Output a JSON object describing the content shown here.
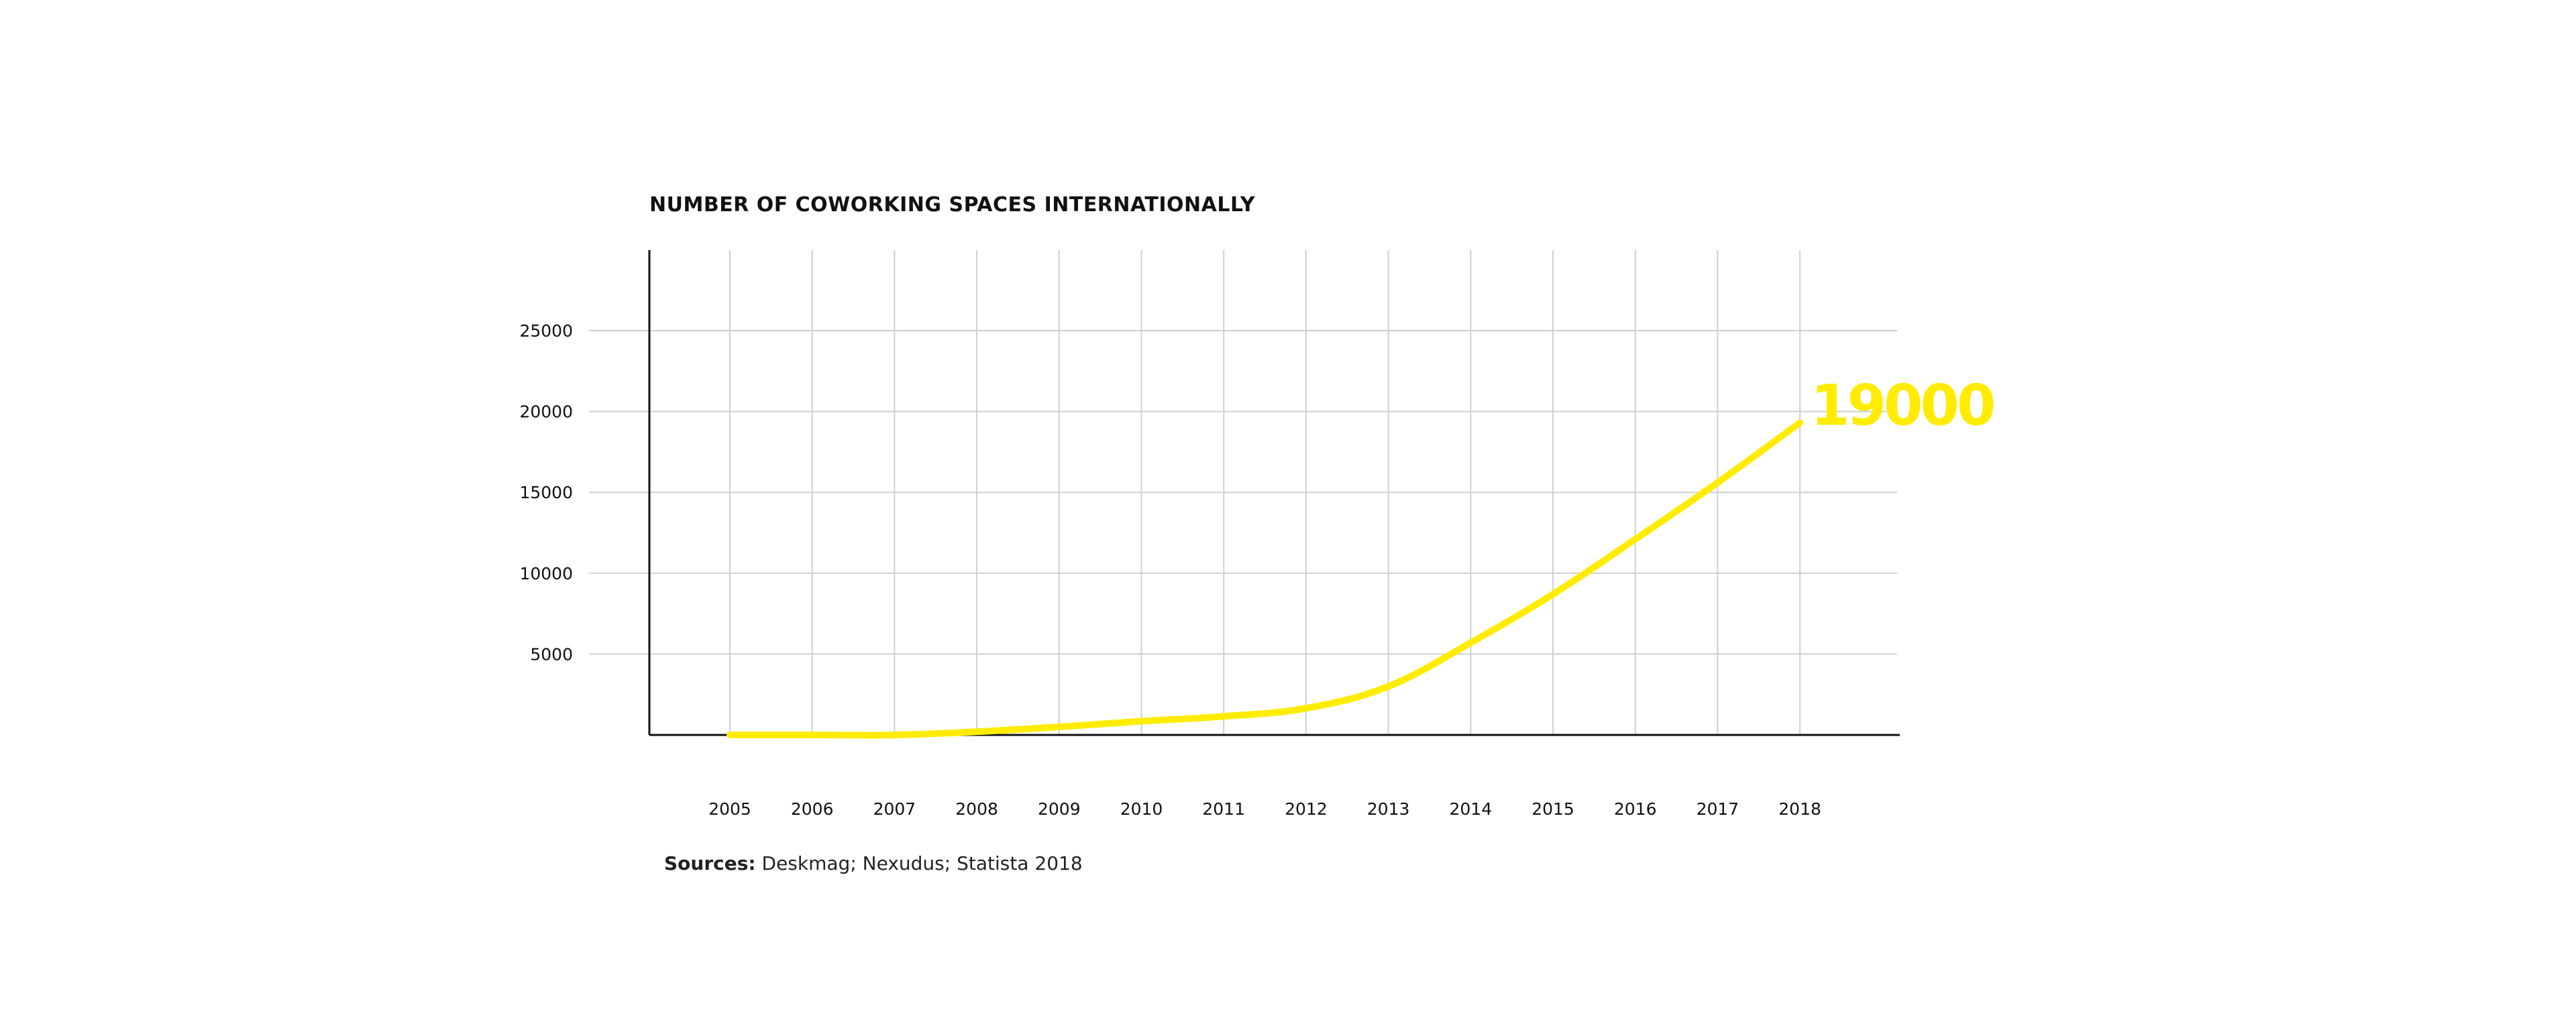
{
  "chart_data": {
    "type": "line",
    "title": "NUMBER OF COWORKING SPACES INTERNATIONALLY",
    "xlabel": "",
    "ylabel": "",
    "categories": [
      "2005",
      "2006",
      "2007",
      "2008",
      "2009",
      "2010",
      "2011",
      "2012",
      "2013",
      "2014",
      "2015",
      "2016",
      "2017",
      "2018"
    ],
    "series": [
      {
        "values": [
          0,
          0,
          0,
          200,
          500,
          850,
          1150,
          1650,
          3000,
          5700,
          8700,
          12100,
          15600,
          19300
        ]
      }
    ],
    "yticks": [
      5000,
      10000,
      15000,
      20000,
      25000
    ],
    "ylim": [
      0,
      30000
    ],
    "grid": true,
    "end_label": "19000",
    "line_color": "#FFEC00",
    "axis_color": "#111111",
    "grid_color": "#cfcfcf"
  },
  "sources": {
    "label": "Sources:",
    "text": "Deskmag; Nexudus; Statista 2018"
  }
}
